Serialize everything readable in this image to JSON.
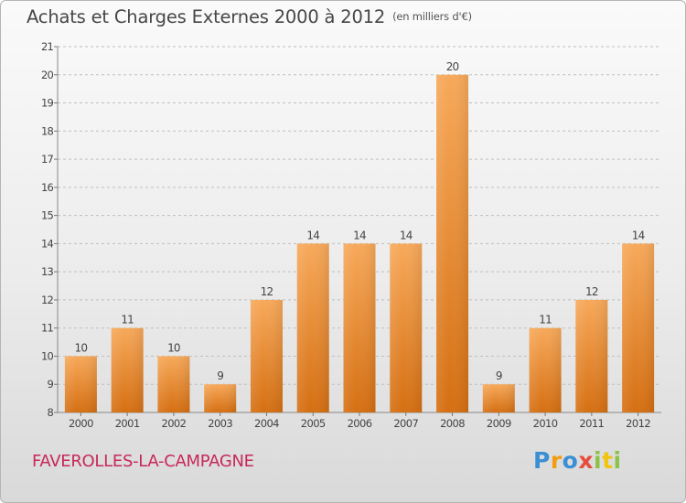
{
  "header": {
    "title": "Achats et Charges Externes 2000 à 2012",
    "unit": "(en milliers d'€)"
  },
  "footer": {
    "town": "FAVEROLLES-LA-CAMPAGNE",
    "logo": "Proxiti"
  },
  "colors": {
    "bar_top": "#f7a95a",
    "bar_bottom": "#d56f12",
    "grid": "#bfbfbf",
    "title": "#474747",
    "town": "#c8285a"
  },
  "chart_data": {
    "type": "bar",
    "title": "Achats et Charges Externes 2000 à 2012",
    "subtitle": "(en milliers d'€)",
    "categories": [
      "2000",
      "2001",
      "2002",
      "2003",
      "2004",
      "2005",
      "2006",
      "2007",
      "2008",
      "2009",
      "2010",
      "2011",
      "2012"
    ],
    "values": [
      10,
      11,
      10,
      9,
      12,
      14,
      14,
      14,
      20,
      9,
      11,
      12,
      14
    ],
    "ylim": [
      8,
      21
    ],
    "yticks": [
      8,
      9,
      10,
      11,
      12,
      13,
      14,
      15,
      16,
      17,
      18,
      19,
      20,
      21
    ],
    "grid": "horizontal dashed",
    "legend": "none"
  }
}
